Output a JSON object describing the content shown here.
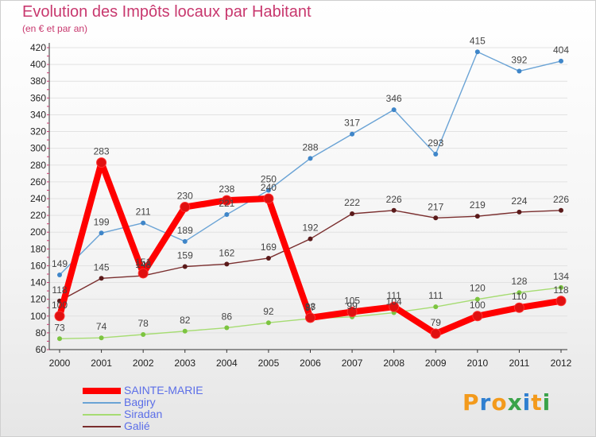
{
  "header": {
    "title": "Evolution des Impôts locaux par Habitant",
    "subtitle": "(en € et par an)"
  },
  "chart_data": {
    "type": "line",
    "title": "Evolution des Impôts locaux par Habitant",
    "subtitle": "(en € et par an)",
    "xlabel": "",
    "ylabel": "",
    "x": [
      2000,
      2001,
      2002,
      2003,
      2004,
      2005,
      2006,
      2007,
      2008,
      2009,
      2010,
      2011,
      2012
    ],
    "ylim": [
      60,
      420
    ],
    "y_ticks": [
      60,
      80,
      100,
      120,
      140,
      160,
      180,
      200,
      220,
      240,
      260,
      280,
      300,
      320,
      340,
      360,
      380,
      400,
      420
    ],
    "grid": "horizontal",
    "legend_position": "bottom-left",
    "series": [
      {
        "name": "SAINTE-MARIE",
        "color": "#ff0000",
        "values": [
          100,
          283,
          151,
          230,
          238,
          240,
          98,
          105,
          111,
          79,
          100,
          110,
          118
        ]
      },
      {
        "name": "Bagiry",
        "color": "#6aa3d5",
        "values": [
          149,
          199,
          211,
          189,
          221,
          250,
          288,
          317,
          346,
          293,
          415,
          392,
          404
        ]
      },
      {
        "name": "Siradan",
        "color": "#a6dc72",
        "values": [
          73,
          74,
          78,
          82,
          86,
          92,
          97,
          99,
          104,
          111,
          120,
          128,
          134
        ]
      },
      {
        "name": "Galié",
        "color": "#7a2e2e",
        "values": [
          118,
          145,
          148,
          159,
          162,
          169,
          192,
          222,
          226,
          217,
          219,
          224,
          226
        ]
      }
    ]
  },
  "logo": {
    "letters": [
      "P",
      "r",
      "o",
      "x",
      "i",
      "t",
      "i"
    ]
  }
}
